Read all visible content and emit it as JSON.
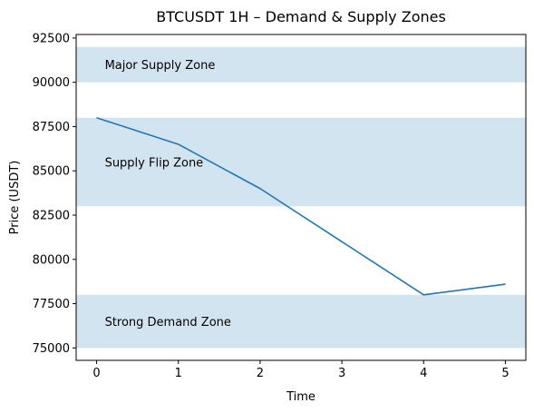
{
  "chart_data": {
    "type": "line",
    "title": "BTCUSDT 1H – Demand & Supply Zones",
    "xlabel": "Time",
    "ylabel": "Price (USDT)",
    "xlim": [
      -0.25,
      5.25
    ],
    "ylim": [
      74300,
      92700
    ],
    "x_ticks": [
      0,
      1,
      2,
      3,
      4,
      5
    ],
    "y_ticks": [
      75000,
      77500,
      80000,
      82500,
      85000,
      87500,
      90000,
      92500
    ],
    "grid": false,
    "series": [
      {
        "x": [
          0,
          1,
          2,
          3,
          4,
          5
        ],
        "values": [
          88000,
          86500,
          84000,
          81000,
          78000,
          78600
        ],
        "color": "#1f77b4"
      }
    ],
    "zones": [
      {
        "label": "Major Supply Zone",
        "y_from": 90000,
        "y_to": 92000
      },
      {
        "label": "Supply Flip Zone",
        "y_from": 83000,
        "y_to": 88000
      },
      {
        "label": "Strong Demand Zone",
        "y_from": 75000,
        "y_to": 78000
      }
    ],
    "zone_color": "#1f77b4",
    "zone_opacity": 0.2
  }
}
